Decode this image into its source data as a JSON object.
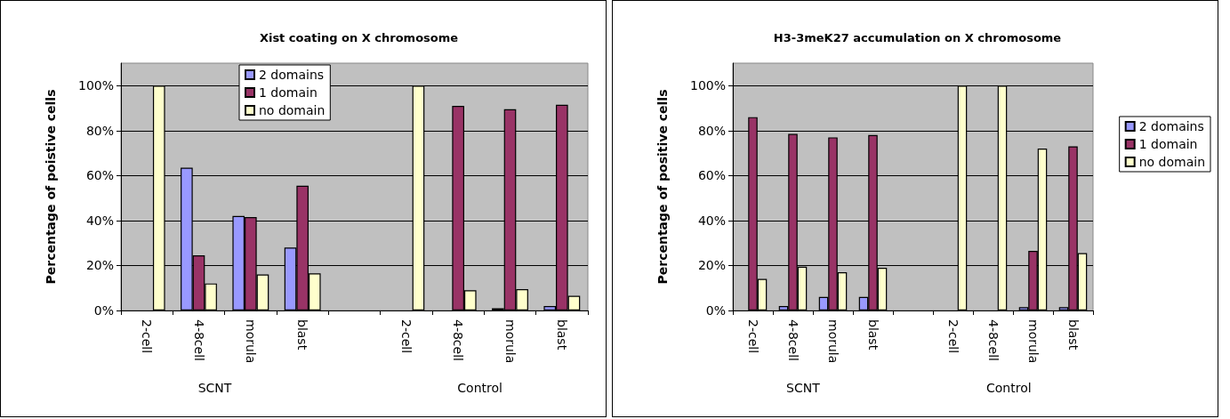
{
  "chart_data": [
    {
      "type": "bar",
      "title": "Xist coating on X chromosome",
      "ylabel": "Percentage of poistive cells",
      "categories": [
        "2-cell",
        "4-8cell",
        "morula",
        "blast",
        null,
        "2-cell",
        "4-8cell",
        "morula",
        "blast"
      ],
      "series": [
        {
          "name": "2 domains",
          "color": "#9999ff",
          "values": [
            0,
            63.5,
            42,
            28,
            null,
            0,
            0,
            1,
            2
          ]
        },
        {
          "name": "1 domain",
          "color": "#993366",
          "values": [
            0,
            24.5,
            41.5,
            55.5,
            null,
            0,
            91,
            89.5,
            91.5
          ]
        },
        {
          "name": "no domain",
          "color": "#ffffcc",
          "values": [
            100,
            12,
            16,
            16.5,
            null,
            100,
            9,
            9.5,
            6.5
          ]
        }
      ],
      "ylim": [
        0,
        110
      ],
      "yticks": [
        {
          "value": 0,
          "label": "0%"
        },
        {
          "value": 20,
          "label": "20%"
        },
        {
          "value": 40,
          "label": "40%"
        },
        {
          "value": 60,
          "label": "60%"
        },
        {
          "value": 80,
          "label": "80%"
        },
        {
          "value": 100,
          "label": "100%"
        }
      ],
      "grid": "y",
      "legend": "top",
      "annotations": [
        "SCNT",
        "Control"
      ]
    },
    {
      "type": "bar",
      "title": "H3-3meK27 accumulation on X chromosome",
      "ylabel": "Percentage of positive cells",
      "categories": [
        "2-cell",
        "4-8cell",
        "morula",
        "blast",
        null,
        "2-cell",
        "4-8cell",
        "morula",
        "blast"
      ],
      "series": [
        {
          "name": "2 domains",
          "color": "#9999ff",
          "values": [
            0,
            2,
            6,
            6,
            null,
            0,
            0,
            1.5,
            1.5
          ]
        },
        {
          "name": "1 domain",
          "color": "#993366",
          "values": [
            86,
            78.5,
            77,
            78,
            null,
            0,
            0,
            26.5,
            73
          ]
        },
        {
          "name": "no domain",
          "color": "#ffffcc",
          "values": [
            14,
            19.5,
            17,
            19,
            null,
            100,
            100,
            72,
            25.5
          ]
        }
      ],
      "ylim": [
        0,
        110
      ],
      "yticks": [
        {
          "value": 0,
          "label": "0%"
        },
        {
          "value": 20,
          "label": "20%"
        },
        {
          "value": 40,
          "label": "40%"
        },
        {
          "value": 60,
          "label": "60%"
        },
        {
          "value": 80,
          "label": "80%"
        },
        {
          "value": 100,
          "label": "100%"
        }
      ],
      "grid": "y",
      "legend": "right",
      "annotations": [
        "SCNT",
        "Control"
      ]
    }
  ]
}
